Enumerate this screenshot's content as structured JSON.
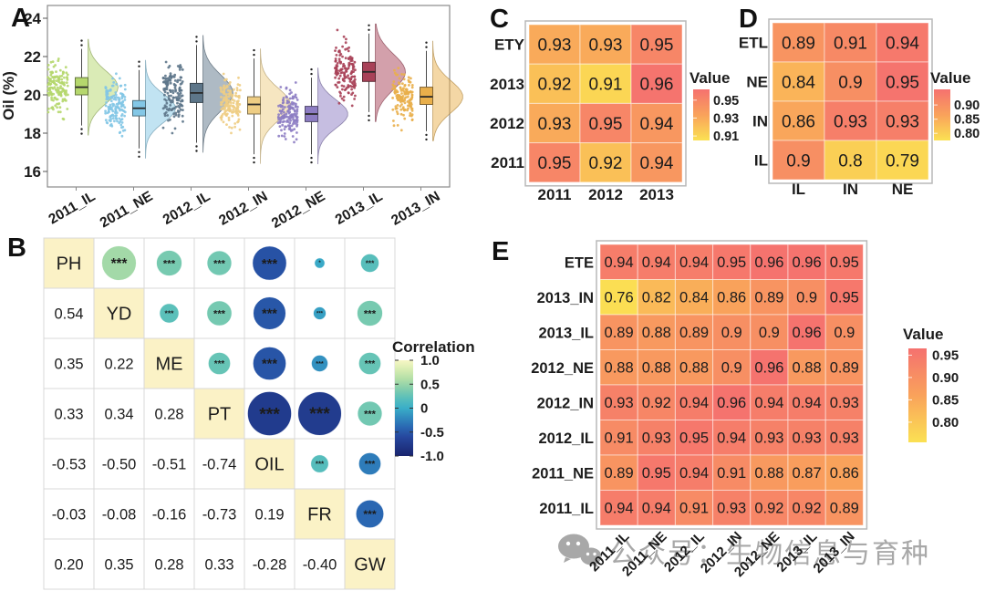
{
  "figure": {
    "panel_labels": {
      "A": "A",
      "B": "B",
      "C": "C",
      "D": "D",
      "E": "E"
    },
    "watermark": {
      "text": "公众号：生物信息与育种",
      "icon": "wechat-icon",
      "color": "#9a9a9a"
    }
  },
  "chart_data": [
    {
      "panel": "A",
      "type": "raincloud",
      "ylabel": "Oil (%)",
      "yticks": [
        24,
        22,
        20,
        18,
        16
      ],
      "ylim": [
        15.2,
        25.3
      ],
      "grid": false,
      "categories": [
        "2011_IL",
        "2011_NE",
        "2012_IL",
        "2012_IN",
        "2012_NE",
        "2013_IL",
        "2013_IN"
      ],
      "series": [
        {
          "name": "2011_IL",
          "color": "#b5d76d",
          "low": 18.4,
          "q1": 20.0,
          "median": 20.4,
          "q3": 20.9,
          "high": 22.4
        },
        {
          "name": "2011_NE",
          "color": "#83c7e6",
          "low": 17.2,
          "q1": 18.9,
          "median": 19.3,
          "q3": 19.7,
          "high": 21.3
        },
        {
          "name": "2012_IL",
          "color": "#5d7689",
          "low": 17.5,
          "q1": 19.6,
          "median": 20.1,
          "q3": 20.6,
          "high": 22.6
        },
        {
          "name": "2012_IN",
          "color": "#eecd84",
          "low": 16.9,
          "q1": 19.0,
          "median": 19.5,
          "q3": 19.9,
          "high": 21.9
        },
        {
          "name": "2012_NE",
          "color": "#8d7dc3",
          "low": 16.9,
          "q1": 18.6,
          "median": 19.0,
          "q3": 19.4,
          "high": 20.9
        },
        {
          "name": "2013_IL",
          "color": "#a84158",
          "low": 19.1,
          "q1": 20.7,
          "median": 21.2,
          "q3": 21.7,
          "high": 23.2
        },
        {
          "name": "2013_IN",
          "color": "#e9af4b",
          "low": 18.1,
          "q1": 19.5,
          "median": 19.9,
          "q3": 20.4,
          "high": 22.3
        }
      ]
    },
    {
      "panel": "B",
      "type": "correlation-matrix",
      "labels": [
        "PH",
        "YD",
        "ME",
        "PT",
        "OIL",
        "FR",
        "GW"
      ],
      "lower_triangle": [
        [
          "0.54"
        ],
        [
          "0.35",
          "0.22"
        ],
        [
          "0.33",
          "0.34",
          "0.28"
        ],
        [
          "-0.53",
          "-0.50",
          "-0.51",
          "-0.74"
        ],
        [
          "-0.03",
          "-0.08",
          "-0.16",
          "-0.73",
          "0.19"
        ],
        [
          "0.20",
          "0.35",
          "0.28",
          "0.33",
          "-0.28",
          "-0.40"
        ]
      ],
      "significance_default": "***",
      "significance_overrides": [
        {
          "row": 0,
          "col": 5,
          "mark": "*"
        }
      ],
      "legend": {
        "title": "Correlation",
        "ticks": [
          "1.0",
          "0.5",
          "0",
          "-0.5",
          "-1.0"
        ],
        "position": "right"
      },
      "diagonal_color": "#fbf2c6"
    },
    {
      "panel": "C",
      "type": "heatmap",
      "rows": [
        "ETY",
        "2013",
        "2012",
        "2011"
      ],
      "cols": [
        "2011",
        "2012",
        "2013"
      ],
      "values": [
        [
          "0.93",
          "0.93",
          "0.95"
        ],
        [
          "0.92",
          "0.91",
          "0.96"
        ],
        [
          "0.93",
          "0.95",
          "0.94"
        ],
        [
          "0.95",
          "0.92",
          "0.94"
        ]
      ],
      "color_domain": [
        0.905,
        0.962
      ],
      "legend": {
        "title": "Value",
        "ticks": [
          "0.95",
          "0.93",
          "0.91"
        ],
        "position": "right"
      }
    },
    {
      "panel": "D",
      "type": "heatmap",
      "rows": [
        "ETL",
        "NE",
        "IN",
        "IL"
      ],
      "cols": [
        "IL",
        "IN",
        "NE"
      ],
      "values": [
        [
          "0.89",
          "0.91",
          "0.94"
        ],
        [
          "0.84",
          "0.9",
          "0.95"
        ],
        [
          "0.86",
          "0.93",
          "0.93"
        ],
        [
          "0.9",
          "0.8",
          "0.79"
        ]
      ],
      "color_domain": [
        0.775,
        0.955
      ],
      "legend": {
        "title": "Value",
        "ticks": [
          "0.90",
          "0.85",
          "0.80"
        ],
        "position": "right"
      }
    },
    {
      "panel": "E",
      "type": "heatmap",
      "rows": [
        "ETE",
        "2013_IN",
        "2013_IL",
        "2012_NE",
        "2012_IN",
        "2012_IL",
        "2011_NE",
        "2011_IL"
      ],
      "cols": [
        "2011_IL",
        "2011_NE",
        "2012_IL",
        "2012_IN",
        "2012_NE",
        "2013_IL",
        "2013_IN"
      ],
      "values": [
        [
          "0.94",
          "0.94",
          "0.94",
          "0.95",
          "0.96",
          "0.96",
          "0.95"
        ],
        [
          "0.76",
          "0.82",
          "0.84",
          "0.86",
          "0.89",
          "0.9",
          "0.95"
        ],
        [
          "0.89",
          "0.88",
          "0.89",
          "0.9",
          "0.9",
          "0.96",
          "0.9"
        ],
        [
          "0.88",
          "0.88",
          "0.88",
          "0.9",
          "0.96",
          "0.88",
          "0.89"
        ],
        [
          "0.93",
          "0.92",
          "0.94",
          "0.96",
          "0.94",
          "0.94",
          "0.93"
        ],
        [
          "0.91",
          "0.93",
          "0.95",
          "0.94",
          "0.93",
          "0.93",
          "0.93"
        ],
        [
          "0.89",
          "0.95",
          "0.94",
          "0.91",
          "0.88",
          "0.87",
          "0.86"
        ],
        [
          "0.94",
          "0.94",
          "0.91",
          "0.93",
          "0.92",
          "0.92",
          "0.89"
        ]
      ],
      "color_domain": [
        0.755,
        0.965
      ],
      "legend": {
        "title": "Value",
        "ticks": [
          "0.95",
          "0.90",
          "0.85",
          "0.80"
        ],
        "position": "right"
      }
    }
  ]
}
